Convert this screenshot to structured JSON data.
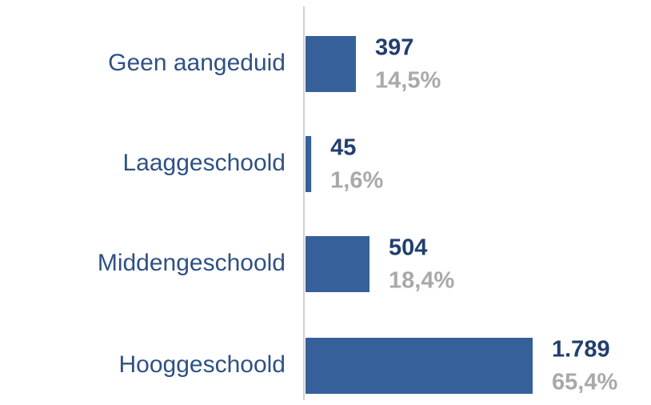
{
  "chart_data": {
    "type": "bar",
    "orientation": "horizontal",
    "color": "#35609a",
    "categories": [
      "Geen aangeduid",
      "Laaggeschoold",
      "Middengeschoold",
      "Hooggeschoold"
    ],
    "values": [
      397,
      45,
      504,
      1789
    ],
    "value_labels": [
      "397",
      "45",
      "504",
      "1.789"
    ],
    "shares": [
      14.5,
      1.6,
      18.4,
      65.4
    ],
    "share_labels": [
      "14,5%",
      "1,6%",
      "18,4%",
      "65,4%"
    ]
  }
}
